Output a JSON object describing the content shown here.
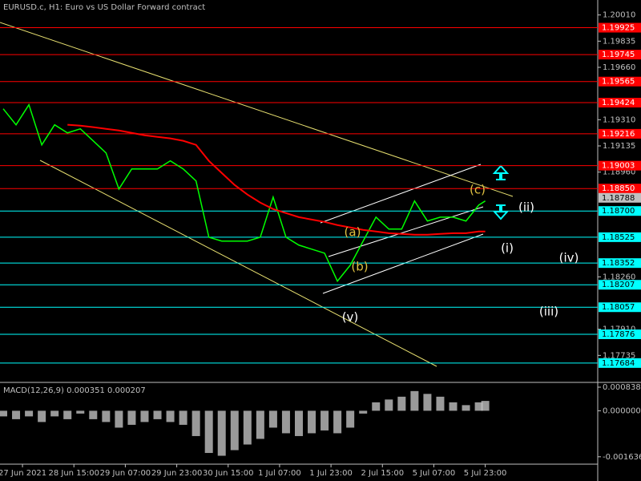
{
  "chart_data": [
    {
      "type": "line",
      "title": "EURUSD.c, H1:  Euro vs US Dollar Forward contract",
      "x": [
        0,
        4,
        8,
        12,
        16,
        20,
        24,
        28,
        32,
        36,
        40,
        44,
        48,
        52,
        56,
        60,
        64,
        68,
        72,
        76,
        80,
        84,
        88,
        92,
        96,
        100,
        104,
        108,
        112,
        116,
        120,
        124,
        128,
        132,
        136,
        140,
        144,
        148,
        150
      ],
      "series": [
        {
          "color": "#00ff00",
          "values": [
            1.19383,
            1.19276,
            1.1941,
            1.19142,
            1.19276,
            1.19222,
            1.19249,
            1.19169,
            1.19088,
            1.18847,
            1.18981,
            1.18981,
            1.18981,
            1.19035,
            1.18981,
            1.18901,
            1.18525,
            1.18499,
            1.18499,
            1.18499,
            1.18525,
            1.18793,
            1.18525,
            1.18472,
            1.18445,
            1.18418,
            1.18231,
            1.18338,
            1.18499,
            1.18659,
            1.18579,
            1.18579,
            1.18767,
            1.18633,
            1.18659,
            1.18659,
            1.18633,
            1.1874,
            1.18767
          ]
        },
        {
          "color": "#ff0000",
          "values": [
            null,
            null,
            null,
            null,
            null,
            1.19276,
            1.1927,
            1.1926,
            1.19249,
            1.19238,
            1.19222,
            1.19206,
            1.19195,
            1.19185,
            1.19169,
            1.19142,
            1.19035,
            1.18954,
            1.18874,
            1.1881,
            1.18756,
            1.18713,
            1.18686,
            1.18659,
            1.18643,
            1.18627,
            1.18606,
            1.1859,
            1.18574,
            1.18563,
            1.18552,
            1.18547,
            1.18542,
            1.18542,
            1.18547,
            1.18552,
            1.18552,
            1.18563,
            1.18563
          ]
        }
      ],
      "xlim": [
        0,
        186
      ],
      "xticks": [
        {
          "value": 6,
          "label": "27 Jun 2021"
        },
        {
          "value": 22,
          "label": "28 Jun 15:00"
        },
        {
          "value": 38,
          "label": "29 Jun 07:00"
        },
        {
          "value": 54,
          "label": "29 Jun 23:00"
        },
        {
          "value": 70,
          "label": "30 Jun 15:00"
        },
        {
          "value": 86,
          "label": "1 Jul 07:00"
        },
        {
          "value": 102,
          "label": "1 Jul 23:00"
        },
        {
          "value": 118,
          "label": "2 Jul 15:00"
        },
        {
          "value": 134,
          "label": "5 Jul 07:00"
        },
        {
          "value": 150,
          "label": "5 Jul 23:00"
        }
      ],
      "ylim": [
        1.1756,
        1.2011
      ],
      "yticks": [
        {
          "value": 1.2001,
          "label": "1.20010"
        },
        {
          "value": 1.19835,
          "label": "1.19835"
        },
        {
          "value": 1.1966,
          "label": "1.19660"
        },
        {
          "value": 1.1931,
          "label": "1.19310"
        },
        {
          "value": 1.19135,
          "label": "1.19135"
        },
        {
          "value": 1.1896,
          "label": "1.18960"
        },
        {
          "value": 1.1826,
          "label": "1.18260"
        },
        {
          "value": 1.1791,
          "label": "1.17910"
        },
        {
          "value": 1.17735,
          "label": "1.17735"
        }
      ],
      "grid": false,
      "resistance_color": "#ff0000",
      "resistance_levels": [
        {
          "value": 1.19925,
          "label": "1.19925"
        },
        {
          "value": 1.19745,
          "label": "1.19745"
        },
        {
          "value": 1.19565,
          "label": "1.19565"
        },
        {
          "value": 1.19424,
          "label": "1.19424"
        },
        {
          "value": 1.19216,
          "label": "1.19216"
        },
        {
          "value": 1.19003,
          "label": "1.19003"
        },
        {
          "value": 1.1885,
          "label": "1.18850"
        }
      ],
      "support_color": "#00ffff",
      "support_levels": [
        {
          "value": 1.187,
          "label": "1.18700"
        },
        {
          "value": 1.18525,
          "label": "1.18525"
        },
        {
          "value": 1.18352,
          "label": "1.18352"
        },
        {
          "value": 1.18207,
          "label": "1.18207"
        },
        {
          "value": 1.18057,
          "label": "1.18057"
        },
        {
          "value": 1.17876,
          "label": "1.17876"
        },
        {
          "value": 1.17684,
          "label": "1.17684"
        }
      ],
      "current_price": {
        "value": 1.18788,
        "label": "1.18788"
      },
      "annotations": [
        "(a)",
        "(b)",
        "(c)",
        "(v)",
        "(i)",
        "(ii)",
        "(iii)",
        "(iv)"
      ]
    },
    {
      "type": "bar",
      "title": "MACD(12,26,9) 0.000351 0.000207",
      "color": "#c0c0c0",
      "x": [
        0,
        4,
        8,
        12,
        16,
        20,
        24,
        28,
        32,
        36,
        40,
        44,
        48,
        52,
        56,
        60,
        64,
        68,
        72,
        76,
        80,
        84,
        88,
        92,
        96,
        100,
        104,
        108,
        112,
        116,
        120,
        124,
        128,
        132,
        136,
        140,
        144,
        148,
        150
      ],
      "values": [
        -0.0002,
        -0.0003,
        -0.0002,
        -0.0004,
        -0.0002,
        -0.0003,
        -0.0001,
        -0.0003,
        -0.0004,
        -0.0006,
        -0.0005,
        -0.0004,
        -0.0003,
        -0.0004,
        -0.0005,
        -0.0009,
        -0.0015,
        -0.0016,
        -0.0014,
        -0.0012,
        -0.001,
        -0.0006,
        -0.0008,
        -0.0009,
        -0.0008,
        -0.0007,
        -0.0008,
        -0.0006,
        -0.0001,
        0.0003,
        0.0004,
        0.0005,
        0.0007,
        0.0006,
        0.0005,
        0.0003,
        0.0002,
        0.0003,
        0.00035
      ],
      "xlim": [
        0,
        186
      ],
      "ylim": [
        -0.00187,
        0.00098
      ],
      "yticks": [
        0.000838,
        {
          "value": 0,
          "label": "0.000000"
        },
        -0.001636
      ]
    }
  ]
}
